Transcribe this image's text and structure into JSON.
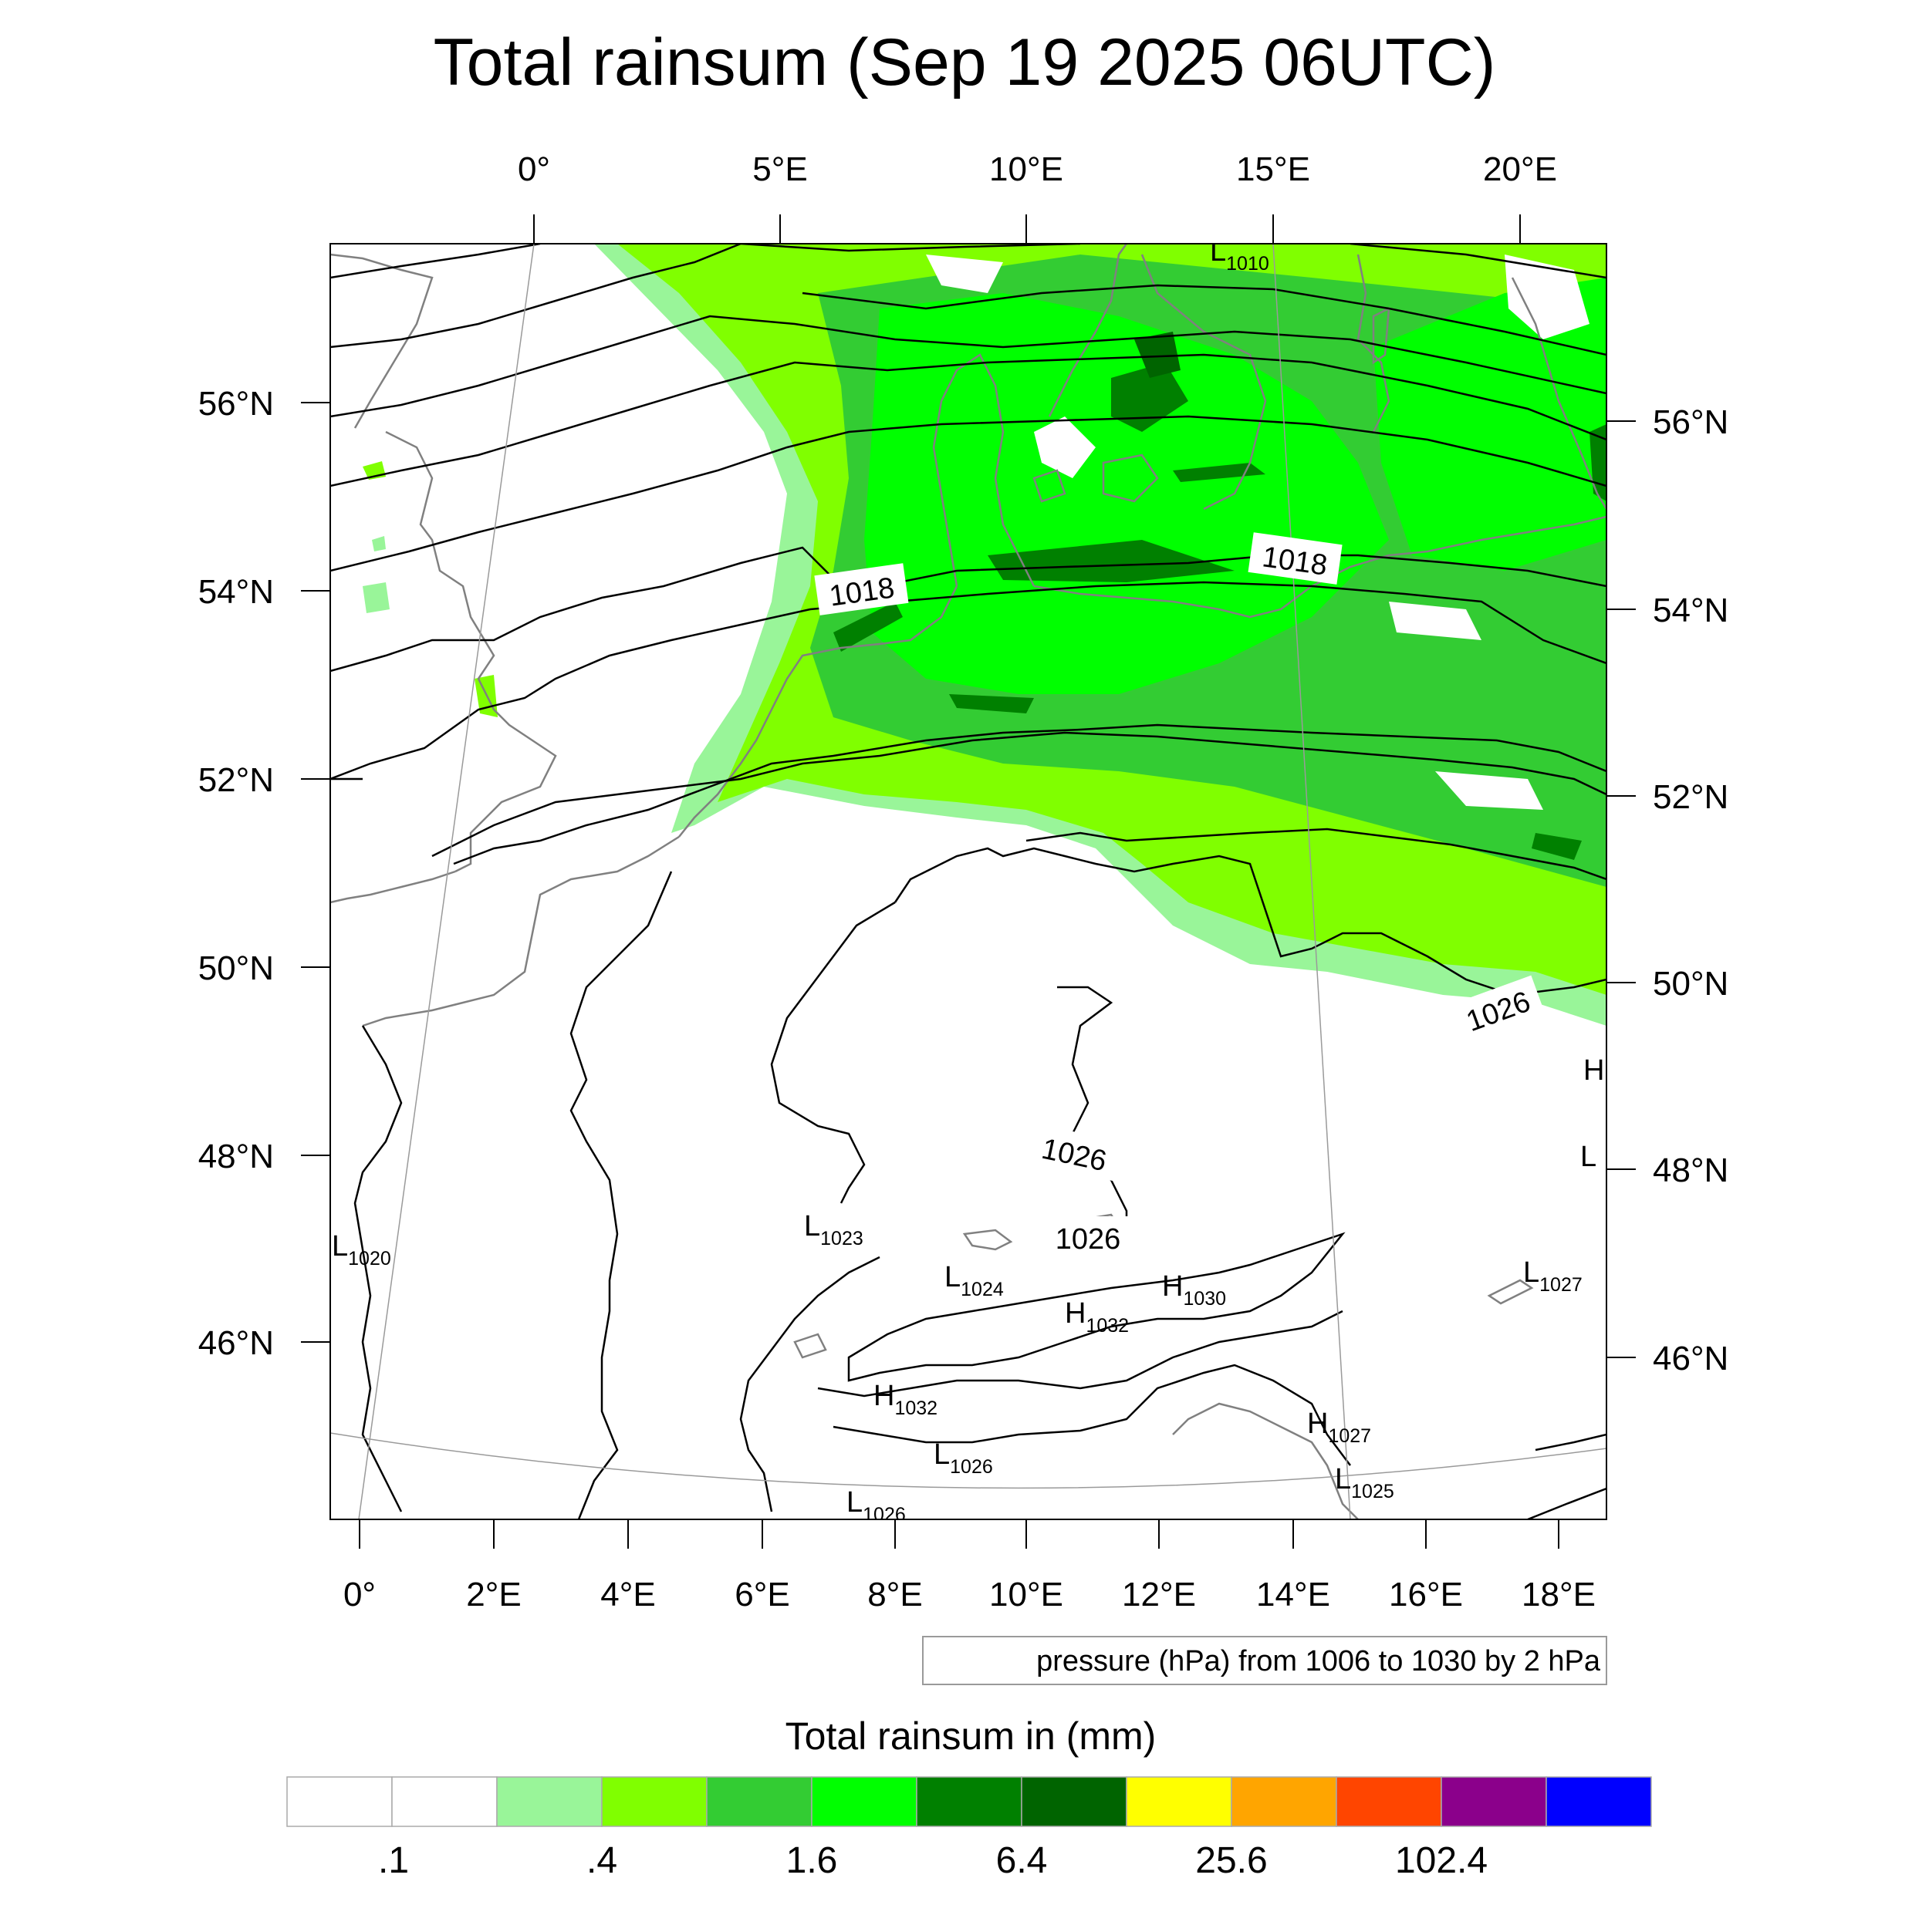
{
  "title": "Total rainsum (Sep 19 2025 06UTC)",
  "axes": {
    "top_lon": [
      "0°",
      "5°E",
      "10°E",
      "15°E",
      "20°E"
    ],
    "bottom_lon": [
      "0°",
      "2°E",
      "4°E",
      "6°E",
      "8°E",
      "10°E",
      "12°E",
      "14°E",
      "16°E",
      "18°E"
    ],
    "left_lat": [
      "56°N",
      "54°N",
      "52°N",
      "50°N",
      "48°N",
      "46°N"
    ],
    "right_lat": [
      "56°N",
      "54°N",
      "52°N",
      "50°N",
      "48°N",
      "46°N"
    ]
  },
  "contour_info": "pressure (hPa) from 1006 to 1030 by 2 hPa",
  "contour_labels": [
    "1018",
    "1018",
    "1026",
    "1026",
    "1026"
  ],
  "pressure_centers": [
    {
      "type": "L",
      "value": "1010"
    },
    {
      "type": "L",
      "value": "1020"
    },
    {
      "type": "L",
      "value": "1023"
    },
    {
      "type": "L",
      "value": "1024"
    },
    {
      "type": "H",
      "value": "1030"
    },
    {
      "type": "H",
      "value": "1032"
    },
    {
      "type": "H",
      "value": "1032"
    },
    {
      "type": "L",
      "value": "1026"
    },
    {
      "type": "L",
      "value": "1026"
    },
    {
      "type": "H",
      "value": "1027"
    },
    {
      "type": "L",
      "value": "1025"
    },
    {
      "type": "L",
      "value": "1027"
    },
    {
      "type": "H",
      "value": ""
    },
    {
      "type": "L",
      "value": ""
    }
  ],
  "colorbar": {
    "title": "Total rainsum in (mm)",
    "colors": [
      "#ffffff",
      "#ffffff",
      "#99f599",
      "#80ff00",
      "#33cc33",
      "#00ff00",
      "#008000",
      "#006400",
      "#ffff00",
      "#ffa500",
      "#ff4500",
      "#8b008b",
      "#0000ff"
    ],
    "tick_labels": [
      ".1",
      ".4",
      "1.6",
      "6.4",
      "25.6",
      "102.4"
    ]
  }
}
